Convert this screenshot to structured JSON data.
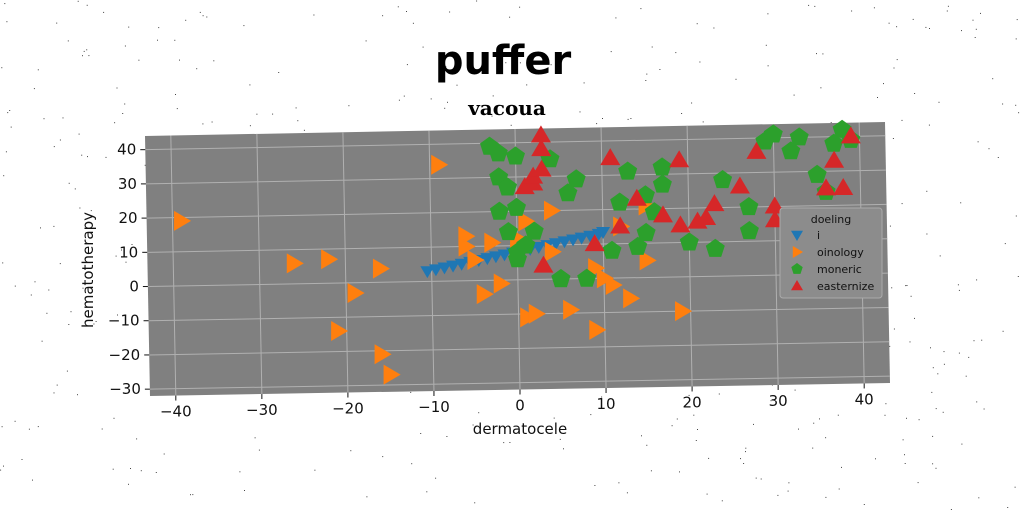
{
  "figure": {
    "title": "puffer"
  },
  "chart_data": {
    "type": "scatter",
    "title": "vacoua",
    "xlabel": "dermatocele",
    "ylabel": "hematotherapy",
    "xlim": [
      -43,
      43
    ],
    "ylim": [
      -32,
      44
    ],
    "xticks": [
      -40,
      -30,
      -20,
      -10,
      0,
      10,
      20,
      30,
      40
    ],
    "yticks": [
      -30,
      -20,
      -10,
      0,
      10,
      20,
      30,
      40
    ],
    "grid": true,
    "legend": {
      "title": "doeling",
      "position": "right"
    },
    "series": [
      {
        "name": "i",
        "marker": "triangle-down",
        "color": "#1f77b4",
        "x": [
          -10.5,
          -9.5,
          -8.5,
          -7.5,
          -6.5,
          -5.5,
          -4.5,
          -3.5,
          -2.5,
          -1.5,
          -0.5,
          0.5,
          1.5,
          2.5,
          3.5,
          4.5,
          5.5,
          6.5,
          7.5,
          8.5,
          9.5,
          10.0
        ],
        "y": [
          3,
          3.5,
          4,
          4.5,
          5,
          5.5,
          6,
          6.5,
          7,
          7.5,
          8,
          8.5,
          9,
          9.5,
          10,
          10.5,
          11,
          11.5,
          12,
          12.5,
          13,
          13.5
        ]
      },
      {
        "name": "oinology",
        "marker": "triangle-right",
        "color": "#ff7f0e",
        "x": [
          -39,
          -26,
          -22,
          -16,
          -19,
          -21,
          -16,
          -15,
          -9,
          -6,
          -6,
          -5,
          -3,
          -4,
          -2,
          0,
          1,
          2,
          1,
          4,
          4,
          6,
          9,
          9,
          10,
          11,
          12,
          13,
          15,
          15,
          19
        ],
        "y": [
          19,
          6,
          7,
          4,
          -3,
          -14,
          -21,
          -27,
          34,
          13,
          10,
          6,
          11,
          -4,
          -1,
          12,
          -11,
          -10,
          17,
          20,
          8,
          -9,
          3,
          -15,
          0,
          -2,
          15,
          -6,
          5,
          21,
          -10
        ]
      },
      {
        "name": "moneric",
        "marker": "pentagon",
        "color": "#2ca02c",
        "x": [
          -3,
          -2,
          0,
          -2,
          -1,
          -2,
          0,
          -1,
          0,
          1,
          0,
          2,
          4,
          5,
          5,
          6,
          7,
          8,
          11,
          12,
          13,
          14,
          15,
          15,
          16,
          17,
          17,
          20,
          23,
          24,
          27,
          27,
          29,
          30,
          32,
          33,
          35,
          36,
          37,
          38,
          39
        ],
        "y": [
          39,
          37,
          36,
          30,
          27,
          20,
          21,
          14,
          8,
          10,
          6,
          14,
          35,
          0,
          0,
          25,
          29,
          0,
          8,
          22,
          31,
          9,
          13,
          24,
          19,
          27,
          32,
          10,
          8,
          28,
          20,
          13,
          39,
          41,
          36,
          40,
          29,
          24,
          38,
          42,
          39
        ]
      },
      {
        "name": "easternize",
        "marker": "triangle-up",
        "color": "#d62728",
        "x": [
          3,
          3,
          2,
          1,
          2,
          3,
          3,
          9,
          11,
          12,
          14,
          17,
          19,
          19,
          21,
          22,
          23,
          26,
          28,
          30,
          30,
          36,
          37,
          38,
          39
        ],
        "y": [
          42,
          38,
          28,
          27,
          30,
          32,
          4,
          10,
          35,
          15,
          23,
          18,
          34,
          15,
          16,
          17,
          21,
          26,
          36,
          20,
          16,
          25,
          33,
          25,
          40
        ]
      }
    ]
  }
}
